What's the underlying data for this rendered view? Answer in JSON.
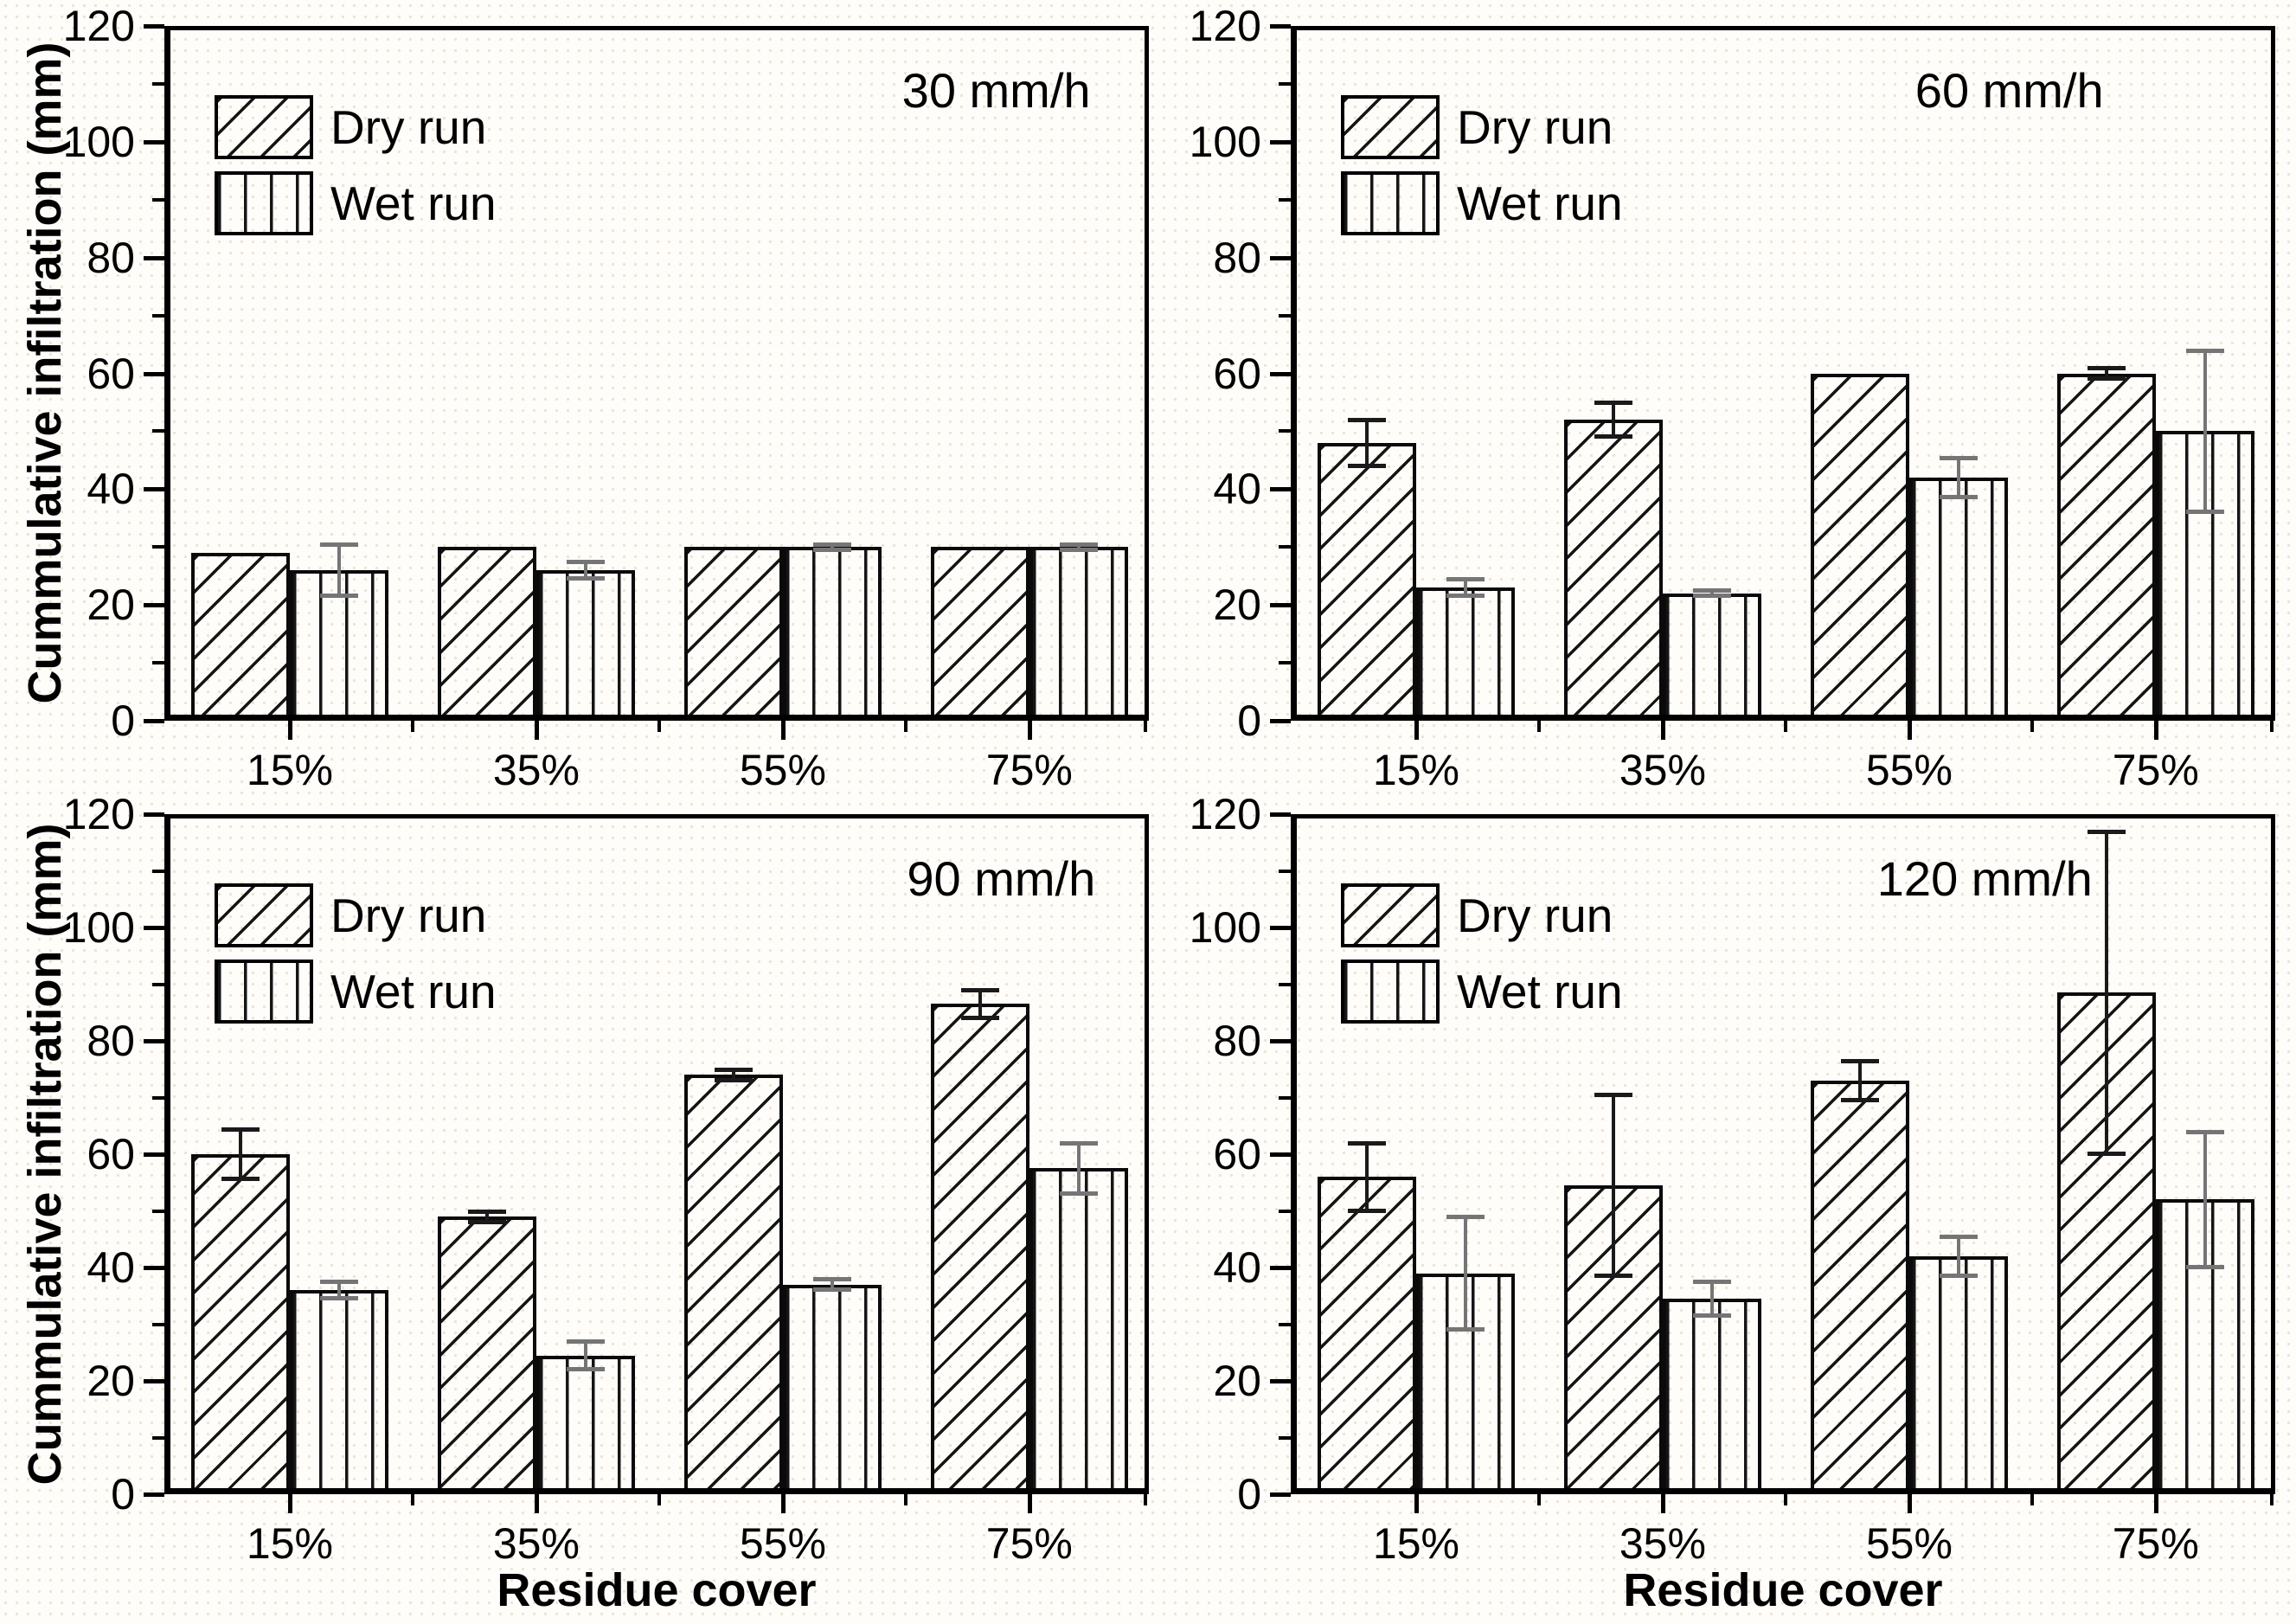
{
  "figure": {
    "ylabel": "Cummulative infiltration (mm)",
    "xlabel": "Residue cover",
    "legend": [
      "Dry run",
      "Wet run"
    ],
    "series_hatch_icons": [
      "diagonal-hatch-icon",
      "vertical-hatch-icon"
    ],
    "colors": {
      "line": "#000000",
      "dry_error": "#1a1a1a",
      "wet_error": "#757575",
      "background": "#fffdfa"
    }
  },
  "chart_data": [
    {
      "type": "bar",
      "title": "30 mm/h",
      "categories": [
        "15%",
        "35%",
        "55%",
        "75%"
      ],
      "xlabel": "",
      "ylabel": "Cummulative infiltration (mm)",
      "ylim": [
        0,
        120
      ],
      "yticks": [
        0,
        20,
        40,
        60,
        80,
        100,
        120
      ],
      "grid": false,
      "legend_position": "upper-left",
      "series": [
        {
          "name": "Dry run",
          "hatch": "diagonal",
          "values": [
            29,
            30,
            30,
            30
          ],
          "errors": [
            0,
            0,
            0,
            0
          ]
        },
        {
          "name": "Wet run",
          "hatch": "vertical",
          "values": [
            26,
            26,
            30,
            30
          ],
          "errors": [
            4.5,
            1.5,
            0.5,
            0.5
          ]
        }
      ]
    },
    {
      "type": "bar",
      "title": "60 mm/h",
      "categories": [
        "15%",
        "35%",
        "55%",
        "75%"
      ],
      "xlabel": "",
      "ylabel": "Cummulative infiltration (mm)",
      "ylim": [
        0,
        120
      ],
      "yticks": [
        0,
        20,
        40,
        60,
        80,
        100,
        120
      ],
      "grid": false,
      "legend_position": "upper-left",
      "series": [
        {
          "name": "Dry run",
          "hatch": "diagonal",
          "values": [
            48,
            52,
            60,
            60
          ],
          "errors": [
            4,
            3,
            0,
            1
          ]
        },
        {
          "name": "Wet run",
          "hatch": "vertical",
          "values": [
            23,
            22,
            42,
            50
          ],
          "errors": [
            1.5,
            0.5,
            3.5,
            14
          ]
        }
      ]
    },
    {
      "type": "bar",
      "title": "90 mm/h",
      "categories": [
        "15%",
        "35%",
        "55%",
        "75%"
      ],
      "xlabel": "Residue cover",
      "ylabel": "Cummulative infiltration (mm)",
      "ylim": [
        0,
        120
      ],
      "yticks": [
        0,
        20,
        40,
        60,
        80,
        100,
        120
      ],
      "grid": false,
      "legend_position": "upper-left",
      "series": [
        {
          "name": "Dry run",
          "hatch": "diagonal",
          "values": [
            60,
            49,
            74,
            86.5
          ],
          "errors": [
            4.5,
            1,
            1,
            2.5
          ]
        },
        {
          "name": "Wet run",
          "hatch": "vertical",
          "values": [
            36,
            24.5,
            37,
            57.5
          ],
          "errors": [
            1.5,
            2.5,
            1,
            4.5
          ]
        }
      ]
    },
    {
      "type": "bar",
      "title": "120 mm/h",
      "categories": [
        "15%",
        "35%",
        "55%",
        "75%"
      ],
      "xlabel": "Residue cover",
      "ylabel": "Cummulative infiltration (mm)",
      "ylim": [
        0,
        120
      ],
      "yticks": [
        0,
        20,
        40,
        60,
        80,
        100,
        120
      ],
      "grid": false,
      "legend_position": "upper-left",
      "series": [
        {
          "name": "Dry run",
          "hatch": "diagonal",
          "values": [
            56,
            54.5,
            73,
            88.5
          ],
          "errors": [
            6,
            16,
            3.5,
            28.5
          ]
        },
        {
          "name": "Wet run",
          "hatch": "vertical",
          "values": [
            39,
            34.5,
            42,
            52
          ],
          "errors": [
            10,
            3,
            3.5,
            12
          ]
        }
      ]
    }
  ]
}
